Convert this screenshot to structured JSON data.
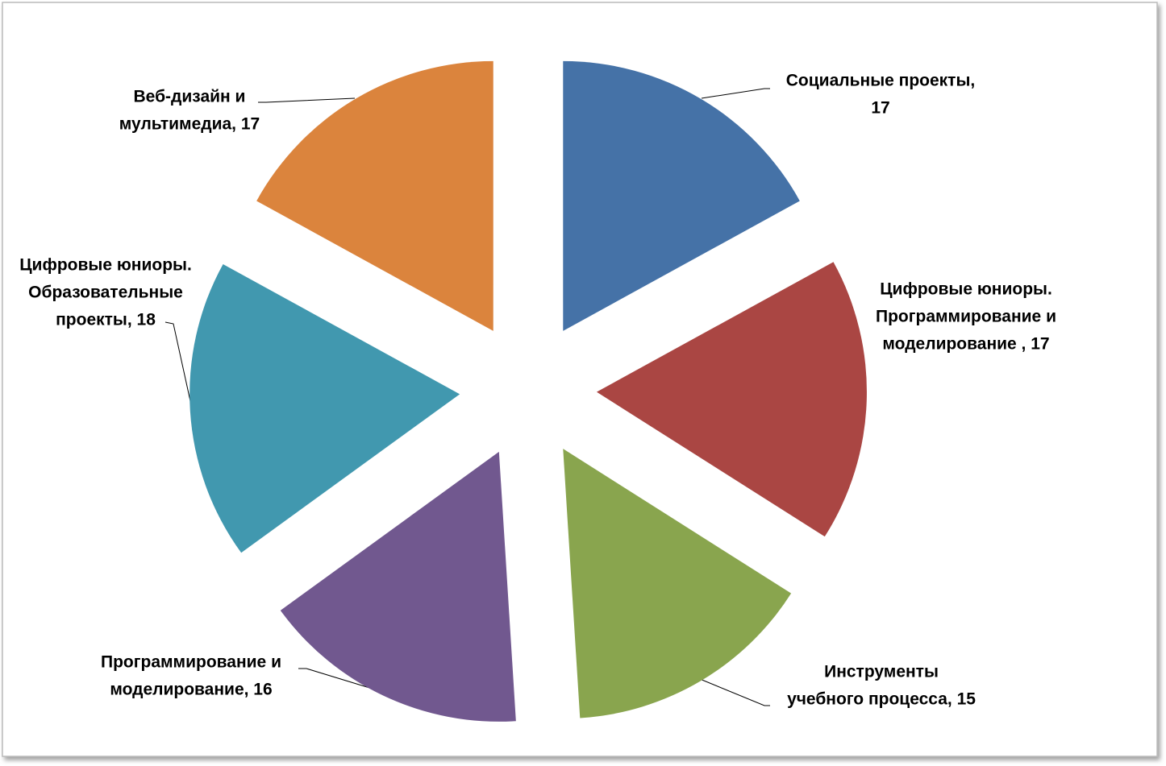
{
  "chart_data": {
    "type": "pie",
    "labels": [
      [
        "Социальные проекты,",
        "17"
      ],
      [
        "Цифровые юниоры.",
        "Программирование и",
        "моделирование , 17"
      ],
      [
        "Инструменты",
        "учебного процесса, 15"
      ],
      [
        "Программирование и",
        "моделирование, 16"
      ],
      [
        "Цифровые юниоры.",
        "Образовательные",
        "проекты, 18"
      ],
      [
        "Веб-дизайн и",
        "мультимедиа, 17"
      ]
    ],
    "values": [
      17,
      17,
      15,
      16,
      18,
      17
    ],
    "colors": [
      "#4572a7",
      "#aa4643",
      "#89a54e",
      "#71588f",
      "#4198af",
      "#db843d"
    ]
  }
}
